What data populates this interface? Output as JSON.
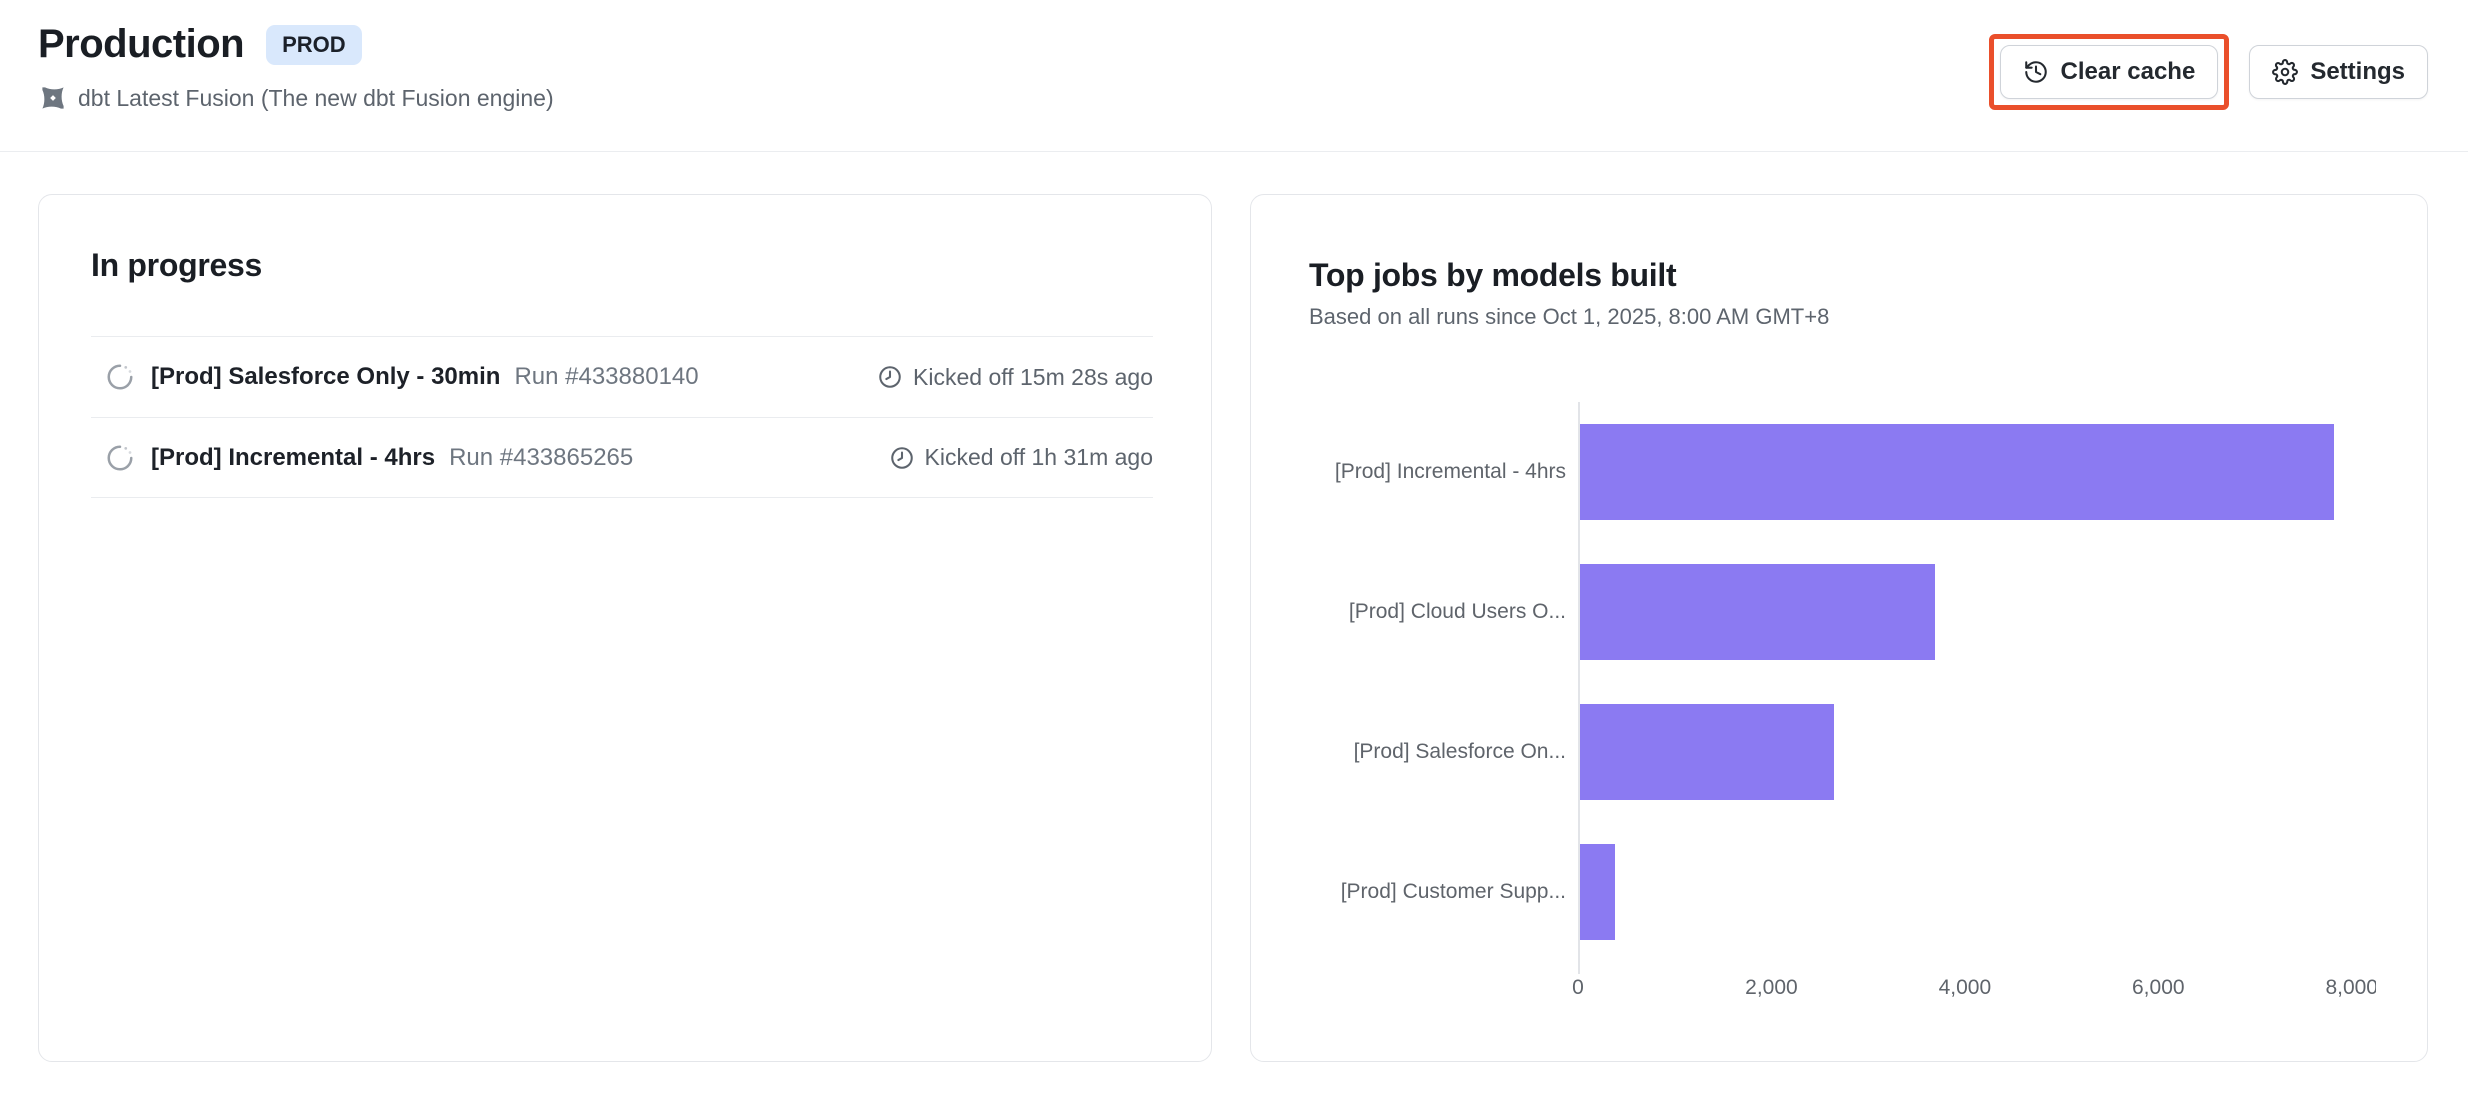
{
  "header": {
    "title": "Production",
    "badge": "PROD",
    "engine_label": "dbt Latest Fusion (The new dbt Fusion engine)",
    "clear_cache_label": "Clear cache",
    "settings_label": "Settings"
  },
  "in_progress": {
    "title": "In progress",
    "runs": [
      {
        "name": "[Prod] Salesforce Only - 30min",
        "run": "Run #433880140",
        "kicked_off": "Kicked off 15m 28s ago"
      },
      {
        "name": "[Prod] Incremental - 4hrs",
        "run": "Run #433865265",
        "kicked_off": "Kicked off 1h 31m ago"
      }
    ]
  },
  "chart_card": {
    "title": "Top jobs by models built",
    "subtitle": "Based on all runs since Oct 1, 2025, 8:00 AM GMT+8"
  },
  "chart_data": {
    "type": "bar",
    "orientation": "horizontal",
    "categories": [
      "[Prod] Incremental - 4hrs",
      "[Prod] Cloud Users O...",
      "[Prod] Salesforce On...",
      "[Prod] Customer Supp..."
    ],
    "values": [
      7820,
      3690,
      2650,
      380
    ],
    "title": "Top jobs by models built",
    "xlabel": "",
    "ylabel": "",
    "xlim": [
      0,
      8220
    ],
    "xticks": [
      0,
      2000,
      4000,
      6000,
      8000
    ],
    "xtick_labels": [
      "0",
      "2,000",
      "4,000",
      "6,000",
      "8,000"
    ],
    "grid": false,
    "legend": false,
    "bar_color": "#8b7af2"
  },
  "colors": {
    "bar": "#8b7af2",
    "badge_bg": "#d9e8fc",
    "annotation": "#ea4f2b"
  }
}
